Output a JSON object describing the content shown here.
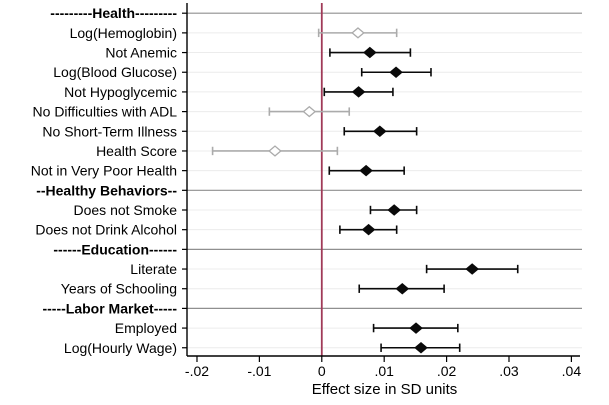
{
  "chart_data": {
    "type": "scatter",
    "variant": "forest-coefficient-plot",
    "title": "",
    "xlabel": "Effect size in SD units",
    "ylabel": "",
    "xlim": [
      -0.0216,
      0.0417
    ],
    "xtick_values": [
      -0.02,
      -0.01,
      0,
      0.01,
      0.02,
      0.03,
      0.04
    ],
    "xtick_labels": [
      "-.02",
      "-.01",
      "0",
      ".01",
      ".02",
      ".03",
      ".04"
    ],
    "zero_line_x": 0,
    "grid": "horizontal-row-lines",
    "legend": "none",
    "marker_shape": "diamond",
    "colors": {
      "significant": "#0a0a0a",
      "insignificant": "#ababab",
      "insignificant_fill": "#ffffff",
      "zero_line": "#a03a58",
      "header_line": "#8f8f8f",
      "row_line": "#ececec",
      "axis": "#000000",
      "background": "#ffffff"
    },
    "rows": [
      {
        "label": "---------Health---------",
        "header": true
      },
      {
        "label": "Log(Hemoglobin)",
        "header": false,
        "est": 0.0058,
        "lo": -0.0005,
        "hi": 0.012,
        "significant": false
      },
      {
        "label": "Not Anemic",
        "header": false,
        "est": 0.0077,
        "lo": 0.0013,
        "hi": 0.0142,
        "significant": true
      },
      {
        "label": "Log(Blood Glucose)",
        "header": false,
        "est": 0.0119,
        "lo": 0.0064,
        "hi": 0.0175,
        "significant": true
      },
      {
        "label": "Not Hypoglycemic",
        "header": false,
        "est": 0.0059,
        "lo": 0.0004,
        "hi": 0.0114,
        "significant": true
      },
      {
        "label": "No Difficulties with ADL",
        "header": false,
        "est": -0.002,
        "lo": -0.0084,
        "hi": 0.0044,
        "significant": false
      },
      {
        "label": "No Short-Term Illness",
        "header": false,
        "est": 0.0093,
        "lo": 0.0036,
        "hi": 0.0152,
        "significant": true
      },
      {
        "label": "Health Score",
        "header": false,
        "est": -0.0075,
        "lo": -0.0175,
        "hi": 0.0025,
        "significant": false
      },
      {
        "label": "Not in Very Poor Health",
        "header": false,
        "est": 0.0071,
        "lo": 0.0012,
        "hi": 0.0132,
        "significant": true
      },
      {
        "label": "--Healthy Behaviors--",
        "header": true
      },
      {
        "label": "Does not Smoke",
        "header": false,
        "est": 0.0116,
        "lo": 0.0078,
        "hi": 0.0152,
        "significant": true
      },
      {
        "label": "Does not Drink Alcohol",
        "header": false,
        "est": 0.0075,
        "lo": 0.0029,
        "hi": 0.012,
        "significant": true
      },
      {
        "label": "------Education------",
        "header": true
      },
      {
        "label": "Literate",
        "header": false,
        "est": 0.0241,
        "lo": 0.0168,
        "hi": 0.0314,
        "significant": true
      },
      {
        "label": "Years of Schooling",
        "header": false,
        "est": 0.0129,
        "lo": 0.006,
        "hi": 0.0196,
        "significant": true
      },
      {
        "label": "-----Labor Market-----",
        "header": true
      },
      {
        "label": "Employed",
        "header": false,
        "est": 0.0151,
        "lo": 0.0083,
        "hi": 0.0218,
        "significant": true
      },
      {
        "label": "Log(Hourly Wage)",
        "header": false,
        "est": 0.0159,
        "lo": 0.0095,
        "hi": 0.0221,
        "significant": true
      }
    ]
  }
}
